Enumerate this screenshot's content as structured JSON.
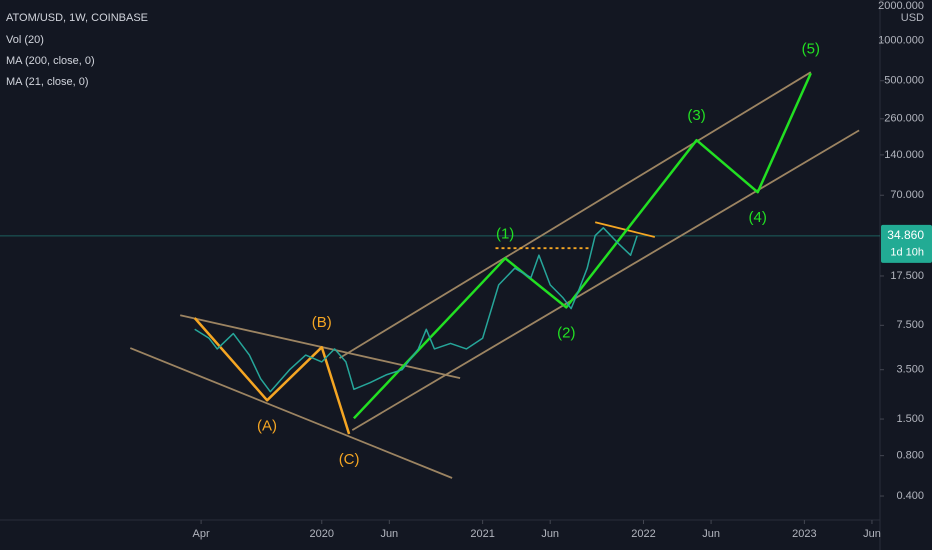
{
  "chart_data": {
    "type": "line",
    "title": "ATOM/USD, 1W, COINBASE",
    "indicators": [
      "Vol (20)",
      "MA (200, close, 0)",
      "MA (21, close, 0)"
    ],
    "currency": "USD",
    "log_scale": true,
    "grid": false,
    "xlim": [
      2018.0,
      2023.47
    ],
    "xticks": [
      {
        "value": 2019.25,
        "label": "Apr"
      },
      2020,
      {
        "value": 2020.42,
        "label": "Jun"
      },
      2021,
      {
        "value": 2021.42,
        "label": "Jun"
      },
      2022,
      {
        "value": 2022.42,
        "label": "Jun"
      },
      2023,
      {
        "value": 2023.42,
        "label": "Jun"
      }
    ],
    "ylim": [
      0.265,
      2000
    ],
    "yticks": [
      {
        "value": 2000,
        "label": "2000.000"
      },
      {
        "value": 1000,
        "label": "1000.000"
      },
      {
        "value": 500,
        "label": "500.000"
      },
      {
        "value": 260,
        "label": "260.000"
      },
      {
        "value": 140,
        "label": "140.000"
      },
      {
        "value": 70,
        "label": "70.000"
      },
      {
        "value": 17.5,
        "label": "17.500"
      },
      {
        "value": 7.5,
        "label": "7.500"
      },
      {
        "value": 3.5,
        "label": "3.500"
      },
      {
        "value": 1.5,
        "label": "1.500"
      },
      {
        "value": 0.8,
        "label": "0.800"
      },
      {
        "value": 0.4,
        "label": "0.400"
      }
    ],
    "color": "#26a69a",
    "x": [
      2019.21,
      2019.3,
      2019.35,
      2019.45,
      2019.55,
      2019.62,
      2019.68,
      2019.8,
      2019.9,
      2020.0,
      2020.08,
      2020.15,
      2020.2,
      2020.3,
      2020.4,
      2020.5,
      2020.6,
      2020.65,
      2020.7,
      2020.8,
      2020.9,
      2021.0,
      2021.1,
      2021.2,
      2021.3,
      2021.35,
      2021.42,
      2021.5,
      2021.55,
      2021.6,
      2021.65,
      2021.7,
      2021.75,
      2021.85,
      2021.92,
      2021.96
    ],
    "values": [
      7,
      6,
      5,
      6.5,
      4.5,
      3,
      2.4,
      3.5,
      4.5,
      4,
      5,
      4,
      2.5,
      2.8,
      3.2,
      3.5,
      5,
      7,
      5,
      5.5,
      5,
      6,
      15,
      20,
      17,
      25,
      15,
      12,
      10,
      14,
      20,
      35,
      40,
      30,
      25,
      34.86
    ],
    "last_price": {
      "value": 34.86,
      "label": "34.860"
    },
    "countdown": "1d 10h",
    "drawings": [
      {
        "color": "#9c8462",
        "x": [
          2019.12,
          2020.86
        ],
        "values": [
          8.9,
          3.03
        ]
      },
      {
        "color": "#9c8462",
        "x": [
          2018.81,
          2020.81
        ],
        "values": [
          5.07,
          0.545
        ]
      },
      {
        "color": "#9c8462",
        "x": [
          2020.11,
          2023.04
        ],
        "values": [
          4.27,
          579
        ]
      },
      {
        "color": "#9c8462",
        "x": [
          2020.19,
          2023.34
        ],
        "values": [
          1.24,
          213
        ]
      },
      {
        "color": "#f5a623",
        "x": [
          2021.7,
          2022.07
        ],
        "values": [
          44,
          34.2
        ]
      },
      {
        "color": "#f5a623",
        "dashed": true,
        "x": [
          2021.08,
          2021.67
        ],
        "values": [
          28.2,
          28.2
        ]
      },
      {
        "color": "#f5a623",
        "x": [
          2019.21,
          2019.66,
          2020.0,
          2020.17
        ],
        "values": [
          8.5,
          2.07,
          5.15,
          1.16
        ],
        "labels": [
          null,
          "(A)",
          "(B)",
          "(C)"
        ]
      },
      {
        "color": "#22e022",
        "x": [
          2020.2,
          2021.14,
          2021.52,
          2022.33,
          2022.71,
          2023.04
        ],
        "values": [
          1.52,
          23.7,
          10.2,
          180,
          73.7,
          568
        ],
        "labels": [
          null,
          "(1)",
          "(2)",
          "(3)",
          "(4)",
          "(5)"
        ]
      }
    ]
  }
}
